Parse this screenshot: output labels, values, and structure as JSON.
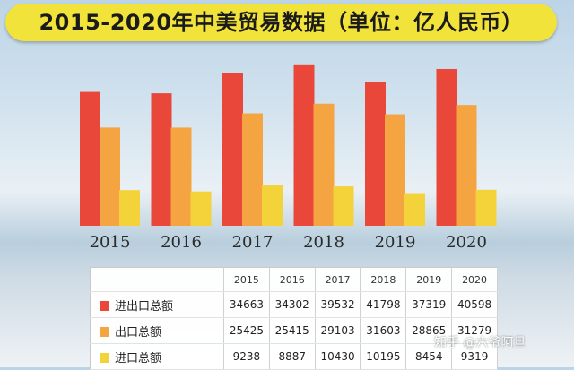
{
  "title": "2015-2020年中美贸易数据（单位：亿人民币）",
  "colors": {
    "total": "#e8473a",
    "export": "#f5a442",
    "import": "#f3d23a"
  },
  "chart_data": {
    "type": "bar",
    "title": "2015-2020年中美贸易数据（单位：亿人民币）",
    "unit": "亿人民币",
    "categories": [
      "2015",
      "2016",
      "2017",
      "2018",
      "2019",
      "2020"
    ],
    "series": [
      {
        "name": "进出口总额",
        "values": [
          34663,
          34302,
          39532,
          41798,
          37319,
          40598
        ]
      },
      {
        "name": "出口总额",
        "values": [
          25425,
          25415,
          29103,
          31603,
          28865,
          31279
        ]
      },
      {
        "name": "进口总额",
        "values": [
          9238,
          8887,
          10430,
          10195,
          8454,
          9319
        ]
      }
    ],
    "xlabel": "",
    "ylabel": "",
    "ylim": [
      0,
      45000
    ],
    "grid": false,
    "legend": "in data table"
  },
  "table": {
    "headers": [
      "2015",
      "2016",
      "2017",
      "2018",
      "2019",
      "2020"
    ],
    "rows": [
      {
        "label": "进出口总额",
        "values": [
          "34663",
          "34302",
          "39532",
          "41798",
          "37319",
          "40598"
        ]
      },
      {
        "label": "出口总额",
        "values": [
          "25425",
          "25415",
          "29103",
          "31603",
          "28865",
          "31279"
        ]
      },
      {
        "label": "进口总额",
        "values": [
          "9238",
          "8887",
          "10430",
          "10195",
          "8454",
          "9319"
        ]
      }
    ]
  },
  "watermark": "知乎 @六爷阿旦"
}
